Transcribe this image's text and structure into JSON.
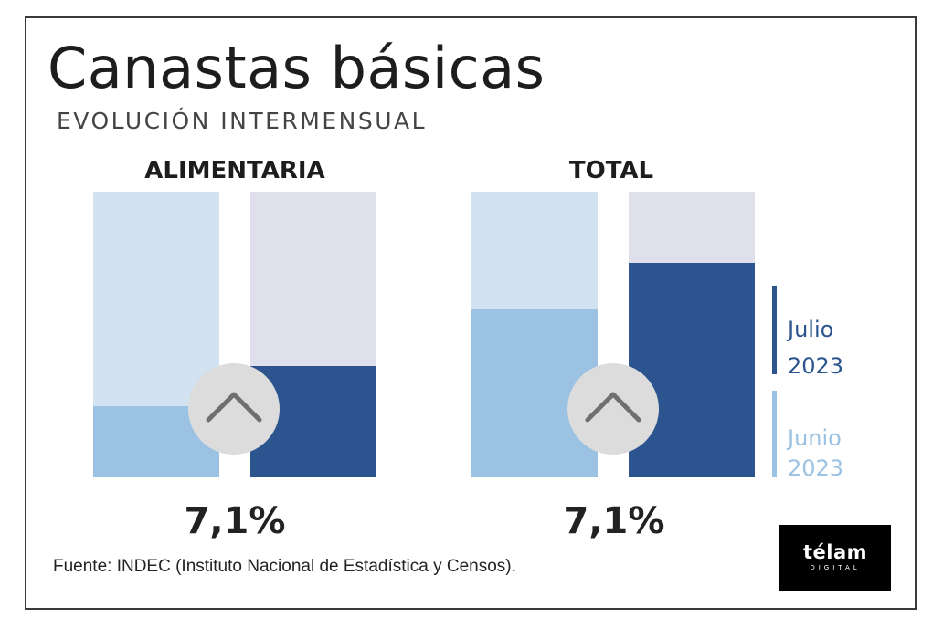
{
  "header": {
    "title": "Canastas básicas",
    "subtitle": "EVOLUCIÓN INTERMENSUAL"
  },
  "chart_data": [
    {
      "type": "bar",
      "title": "ALIMENTARIA",
      "categories": [
        "Junio 2023",
        "Julio 2023"
      ],
      "series": [
        {
          "name": "Junio 2023",
          "color": "#9bc2e2",
          "background": "#d2e2f1",
          "fill_fraction": 0.25
        },
        {
          "name": "Julio 2023",
          "color": "#2c548e",
          "background": "#dfe0ec",
          "fill_fraction": 0.39
        }
      ],
      "change_label": "7,1%",
      "indicator": "chevron-up-icon"
    },
    {
      "type": "bar",
      "title": "TOTAL",
      "categories": [
        "Junio 2023",
        "Julio 2023"
      ],
      "series": [
        {
          "name": "Junio 2023",
          "color": "#9bc2e2",
          "background": "#d2e2f1",
          "fill_fraction": 0.59
        },
        {
          "name": "Julio 2023",
          "color": "#2c548e",
          "background": "#dfe0ec",
          "fill_fraction": 0.75
        }
      ],
      "change_label": "7,1%",
      "indicator": "chevron-up-icon"
    }
  ],
  "legend": {
    "items": [
      {
        "line1": "Julio",
        "line2": "2023",
        "color": "#2c548e"
      },
      {
        "line1": "Junio",
        "line2": "2023",
        "color": "#9bc2e2"
      }
    ]
  },
  "source": "Fuente: INDEC (Instituto Nacional de Estadística y Censos).",
  "logo": {
    "main": "télam",
    "sub": "DIGITAL"
  }
}
